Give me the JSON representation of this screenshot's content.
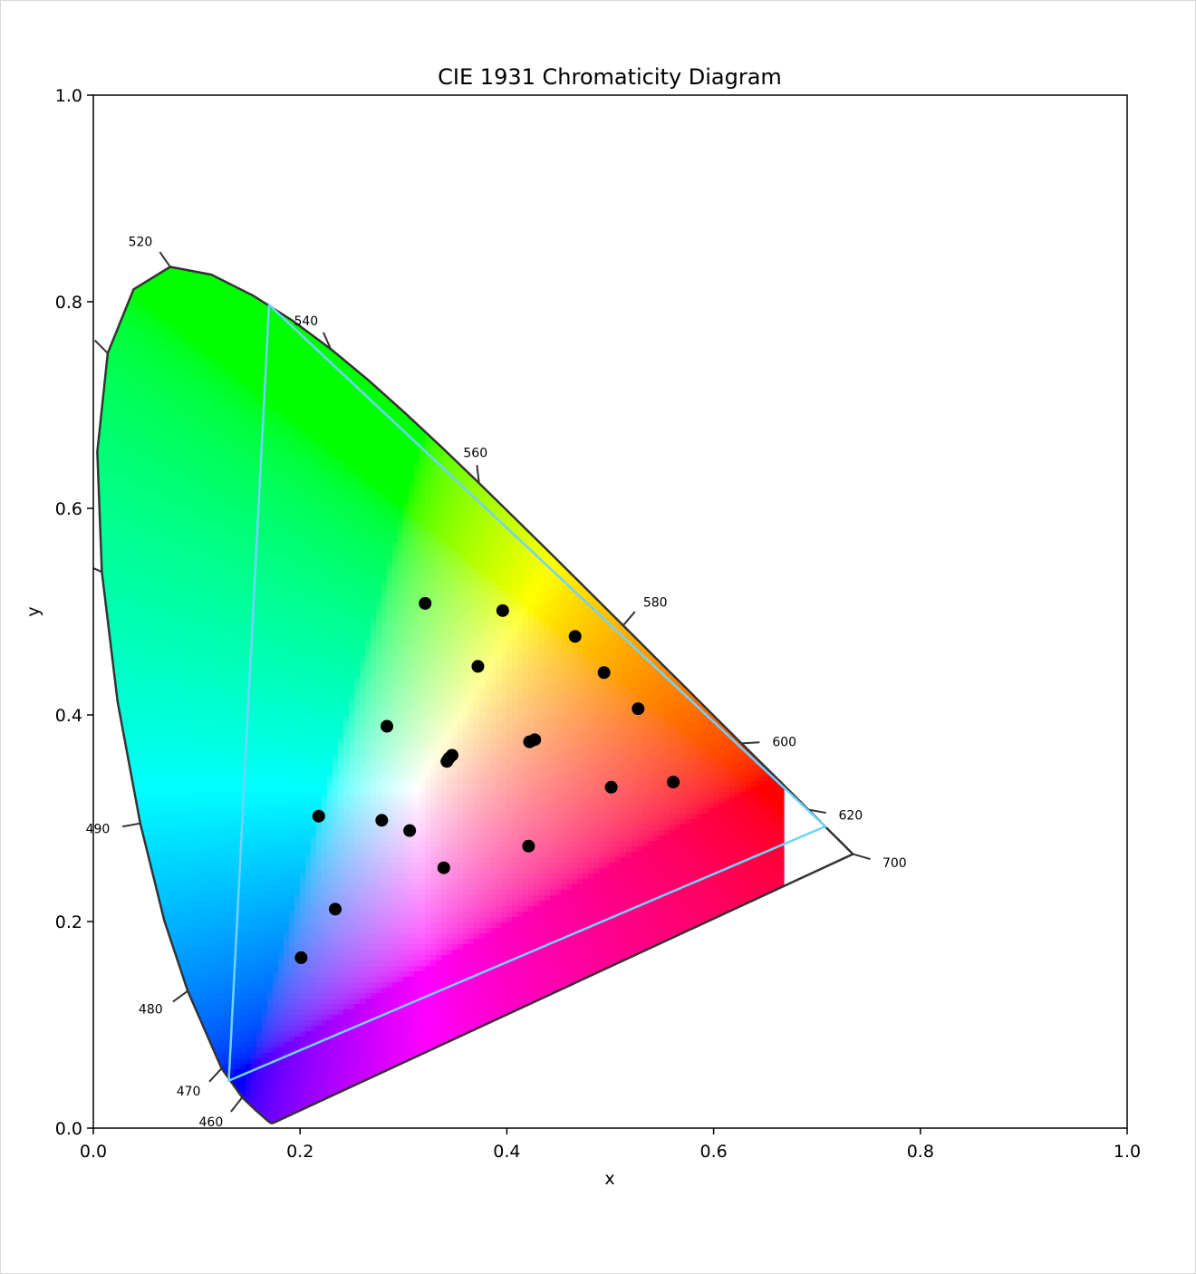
{
  "chart_data": {
    "type": "scatter",
    "title": "CIE 1931 Chromaticity Diagram",
    "xlabel": "x",
    "ylabel": "y",
    "xlim": [
      0.0,
      1.0
    ],
    "ylim": [
      0.0,
      1.0
    ],
    "x_ticks": [
      {
        "value": 0.0,
        "label": "0.0"
      },
      {
        "value": 0.2,
        "label": "0.2"
      },
      {
        "value": 0.4,
        "label": "0.4"
      },
      {
        "value": 0.6,
        "label": "0.6"
      },
      {
        "value": 0.8,
        "label": "0.8"
      },
      {
        "value": 1.0,
        "label": "1.0"
      }
    ],
    "y_ticks": [
      {
        "value": 0.0,
        "label": "0.0"
      },
      {
        "value": 0.2,
        "label": "0.2"
      },
      {
        "value": 0.4,
        "label": "0.4"
      },
      {
        "value": 0.6,
        "label": "0.6"
      },
      {
        "value": 0.8,
        "label": "0.8"
      },
      {
        "value": 1.0,
        "label": "1.0"
      }
    ],
    "grid": false,
    "spectral_locus": [
      [
        0.1741,
        0.005
      ],
      [
        0.1738,
        0.0049
      ],
      [
        0.1736,
        0.0049
      ],
      [
        0.1733,
        0.0048
      ],
      [
        0.1726,
        0.0048
      ],
      [
        0.1714,
        0.0051
      ],
      [
        0.1689,
        0.0069
      ],
      [
        0.1644,
        0.0109
      ],
      [
        0.1566,
        0.0177
      ],
      [
        0.144,
        0.0297
      ],
      [
        0.1241,
        0.0578
      ],
      [
        0.0913,
        0.1327
      ],
      [
        0.0687,
        0.2007
      ],
      [
        0.0454,
        0.295
      ],
      [
        0.0235,
        0.4127
      ],
      [
        0.0082,
        0.5384
      ],
      [
        0.0039,
        0.6548
      ],
      [
        0.0139,
        0.7502
      ],
      [
        0.0389,
        0.812
      ],
      [
        0.0743,
        0.8338
      ],
      [
        0.1142,
        0.8262
      ],
      [
        0.1547,
        0.8059
      ],
      [
        0.1929,
        0.7816
      ],
      [
        0.2296,
        0.7543
      ],
      [
        0.2658,
        0.7243
      ],
      [
        0.3016,
        0.6923
      ],
      [
        0.3373,
        0.6589
      ],
      [
        0.3731,
        0.6245
      ],
      [
        0.4087,
        0.5896
      ],
      [
        0.4441,
        0.5547
      ],
      [
        0.4788,
        0.5202
      ],
      [
        0.5125,
        0.4866
      ],
      [
        0.5448,
        0.4544
      ],
      [
        0.5752,
        0.4242
      ],
      [
        0.6029,
        0.3965
      ],
      [
        0.627,
        0.3725
      ],
      [
        0.6482,
        0.3514
      ],
      [
        0.6658,
        0.334
      ],
      [
        0.6801,
        0.3197
      ],
      [
        0.6915,
        0.3083
      ],
      [
        0.7006,
        0.2993
      ],
      [
        0.7079,
        0.292
      ],
      [
        0.714,
        0.2859
      ],
      [
        0.719,
        0.2809
      ],
      [
        0.723,
        0.277
      ],
      [
        0.726,
        0.274
      ],
      [
        0.7283,
        0.2717
      ],
      [
        0.73,
        0.27
      ],
      [
        0.7311,
        0.2689
      ],
      [
        0.732,
        0.268
      ],
      [
        0.7327,
        0.2673
      ],
      [
        0.7334,
        0.2666
      ],
      [
        0.734,
        0.266
      ],
      [
        0.7344,
        0.2656
      ],
      [
        0.7346,
        0.2654
      ],
      [
        0.7347,
        0.2653
      ]
    ],
    "wavelength_labels": [
      {
        "label": "460",
        "x": 0.144,
        "y": 0.0297
      },
      {
        "label": "470",
        "x": 0.1241,
        "y": 0.0578
      },
      {
        "label": "480",
        "x": 0.0913,
        "y": 0.1327
      },
      {
        "label": "490",
        "x": 0.0454,
        "y": 0.295
      },
      {
        "label": "",
        "x": 0.0082,
        "y": 0.5384
      },
      {
        "label": "",
        "x": 0.0139,
        "y": 0.7502
      },
      {
        "label": "520",
        "x": 0.0743,
        "y": 0.8338
      },
      {
        "label": "540",
        "x": 0.2296,
        "y": 0.7543
      },
      {
        "label": "560",
        "x": 0.3731,
        "y": 0.6245
      },
      {
        "label": "580",
        "x": 0.5125,
        "y": 0.4866
      },
      {
        "label": "600",
        "x": 0.627,
        "y": 0.3725
      },
      {
        "label": "620",
        "x": 0.6915,
        "y": 0.3083
      },
      {
        "label": "700",
        "x": 0.7347,
        "y": 0.2653
      }
    ],
    "gamut_triangle": {
      "color": "#6fd3ff",
      "points": [
        [
          0.708,
          0.292
        ],
        [
          0.17,
          0.797
        ],
        [
          0.131,
          0.046
        ]
      ]
    },
    "points": [
      {
        "x": 0.321,
        "y": 0.508
      },
      {
        "x": 0.396,
        "y": 0.501
      },
      {
        "x": 0.466,
        "y": 0.476
      },
      {
        "x": 0.372,
        "y": 0.447
      },
      {
        "x": 0.494,
        "y": 0.441
      },
      {
        "x": 0.527,
        "y": 0.406
      },
      {
        "x": 0.284,
        "y": 0.389
      },
      {
        "x": 0.422,
        "y": 0.374
      },
      {
        "x": 0.427,
        "y": 0.376
      },
      {
        "x": 0.342,
        "y": 0.355
      },
      {
        "x": 0.347,
        "y": 0.361
      },
      {
        "x": 0.344,
        "y": 0.358
      },
      {
        "x": 0.561,
        "y": 0.335
      },
      {
        "x": 0.501,
        "y": 0.33
      },
      {
        "x": 0.218,
        "y": 0.302
      },
      {
        "x": 0.279,
        "y": 0.298
      },
      {
        "x": 0.306,
        "y": 0.288
      },
      {
        "x": 0.421,
        "y": 0.273
      },
      {
        "x": 0.339,
        "y": 0.252
      },
      {
        "x": 0.234,
        "y": 0.212
      },
      {
        "x": 0.201,
        "y": 0.165
      }
    ],
    "point_color": "#000000",
    "locus_color": "#333333"
  }
}
